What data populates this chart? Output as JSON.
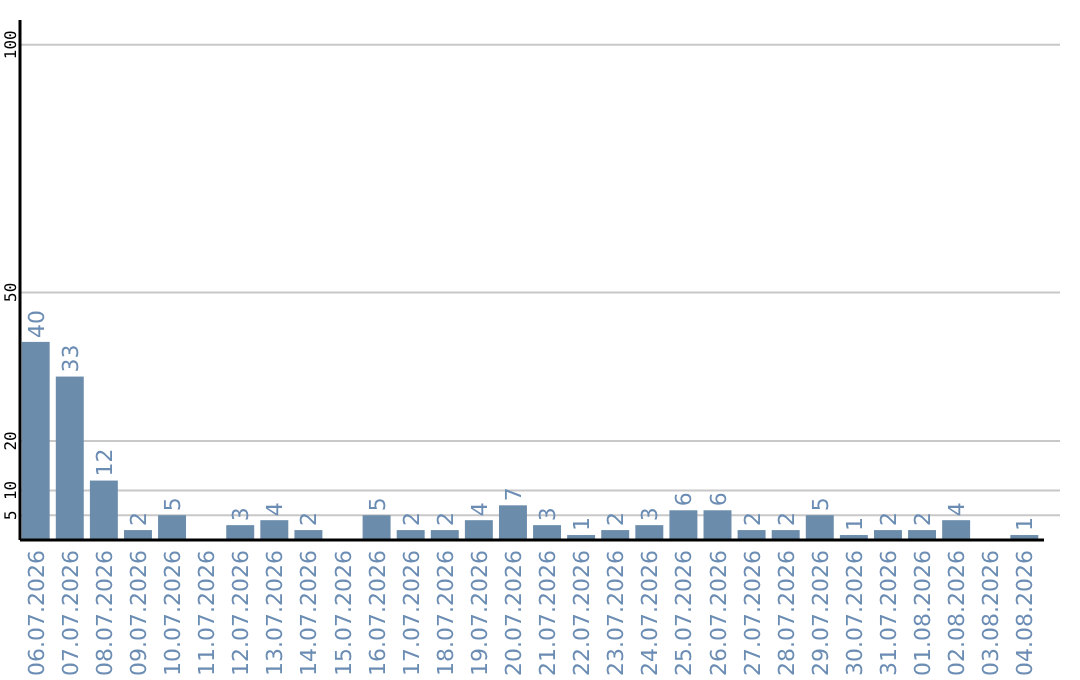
{
  "chart_data": {
    "type": "bar",
    "categories": [
      "06.07.2026",
      "07.07.2026",
      "08.07.2026",
      "09.07.2026",
      "10.07.2026",
      "11.07.2026",
      "12.07.2026",
      "13.07.2026",
      "14.07.2026",
      "15.07.2026",
      "16.07.2026",
      "17.07.2026",
      "18.07.2026",
      "19.07.2026",
      "20.07.2026",
      "21.07.2026",
      "22.07.2026",
      "23.07.2026",
      "24.07.2026",
      "25.07.2026",
      "26.07.2026",
      "27.07.2026",
      "28.07.2026",
      "29.07.2026",
      "30.07.2026",
      "31.07.2026",
      "01.08.2026",
      "02.08.2026",
      "03.08.2026",
      "04.08.2026"
    ],
    "values": [
      40,
      33,
      12,
      2,
      5,
      null,
      3,
      4,
      2,
      null,
      5,
      2,
      2,
      4,
      7,
      3,
      1,
      2,
      3,
      6,
      6,
      2,
      2,
      5,
      1,
      2,
      2,
      4,
      null,
      1
    ],
    "color": "#6b8cab",
    "ylim": [
      0,
      105
    ],
    "yticks": [
      5,
      10,
      20,
      50,
      100
    ],
    "grid": "y",
    "data_labels": true
  }
}
